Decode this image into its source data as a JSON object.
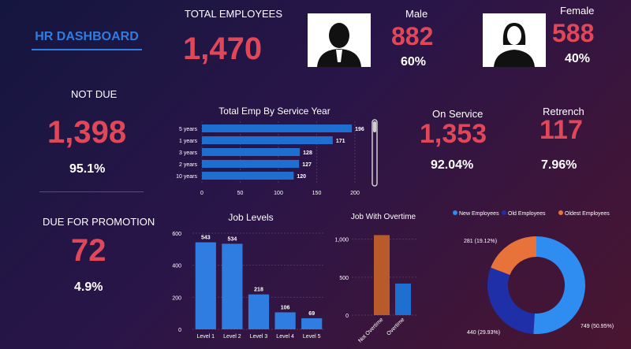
{
  "header": {
    "title": "HR DASHBOARD"
  },
  "kpis": {
    "total_employees": {
      "label": "TOTAL EMPLOYEES",
      "value": "1,470"
    },
    "male": {
      "label": "Male",
      "value": "882",
      "pct": "60%"
    },
    "female": {
      "label": "Female",
      "value": "588",
      "pct": "40%"
    },
    "not_due": {
      "label": "NOT DUE",
      "value": "1,398",
      "pct": "95.1%"
    },
    "due_promotion": {
      "label": "DUE FOR PROMOTION",
      "value": "72",
      "pct": "4.9%"
    },
    "on_service": {
      "label": "On Service",
      "value": "1,353",
      "pct": "92.04%"
    },
    "retrench": {
      "label": "Retrench",
      "value": "117",
      "pct": "7.96%"
    }
  },
  "colors": {
    "accent_red": "#e0485a",
    "accent_blue": "#2f7de1",
    "bar_blue": "#1f6fd1",
    "orange": "#e8733a",
    "brown": "#b85a2a"
  },
  "icons": {
    "male": "male-avatar-icon",
    "female": "female-avatar-icon"
  },
  "chart_data": [
    {
      "type": "bar",
      "orientation": "horizontal",
      "title": "Total Emp By Service Year",
      "categories": [
        "5 years",
        "1 years",
        "3 years",
        "2 years",
        "10 years"
      ],
      "values": [
        196,
        171,
        128,
        127,
        120
      ],
      "xlim": [
        0,
        200
      ],
      "xticks": [
        "0",
        "50",
        "100",
        "150",
        "200"
      ]
    },
    {
      "type": "bar",
      "title": "Job Levels",
      "categories": [
        "Level 1",
        "Level 2",
        "Level 3",
        "Level 4",
        "Level 5"
      ],
      "values": [
        543,
        534,
        218,
        106,
        69
      ],
      "ylim": [
        0,
        600
      ],
      "yticks": [
        "0",
        "200",
        "400",
        "600"
      ]
    },
    {
      "type": "bar",
      "title": "Job With Overtime",
      "categories": [
        "Not Overtime",
        "Overtime"
      ],
      "values": [
        1054,
        416
      ],
      "ylim": [
        0,
        1100
      ],
      "yticks": [
        "0",
        "500",
        "1,000"
      ]
    },
    {
      "type": "pie",
      "donut": true,
      "legend_position": "top",
      "series": [
        {
          "name": "New Employees",
          "value": 749,
          "label": "749 (50.95%)",
          "color": "#2f8cf0"
        },
        {
          "name": "Old Employees",
          "value": 440,
          "label": "440 (29.93%)",
          "color": "#1f2fa8"
        },
        {
          "name": "Oldest Employees",
          "value": 281,
          "label": "281 (19.12%)",
          "color": "#e8733a"
        }
      ]
    }
  ]
}
